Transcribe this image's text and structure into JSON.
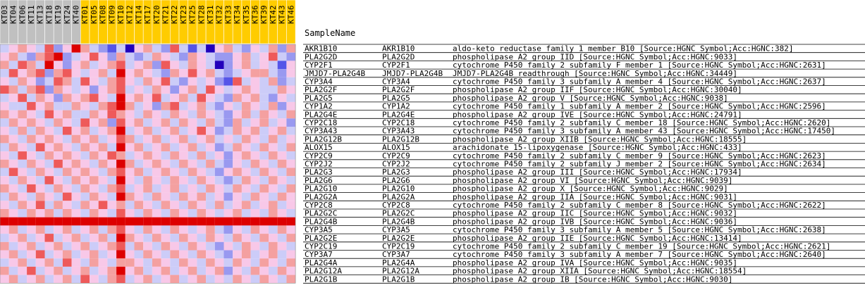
{
  "header": {
    "sample_name": "SampleName"
  },
  "chart_data": {
    "type": "heatmap",
    "samples": [
      "KT03",
      "KT04",
      "KT06",
      "KT11",
      "KT13",
      "KT18",
      "KT19",
      "KT24",
      "KT40",
      "KT01",
      "KT05",
      "KT08",
      "KT09",
      "KT10",
      "KT12",
      "KT14",
      "KT17",
      "KT20",
      "KT21",
      "KT22",
      "KT23",
      "KT25",
      "KT28",
      "KT31",
      "KT32",
      "KT33",
      "KT34",
      "KT35",
      "KT36",
      "KT39",
      "KT42",
      "KT43",
      "KT46"
    ],
    "sample_groups": [
      0,
      0,
      0,
      0,
      0,
      0,
      0,
      0,
      0,
      1,
      1,
      1,
      1,
      1,
      1,
      1,
      1,
      1,
      1,
      1,
      1,
      1,
      1,
      1,
      1,
      1,
      1,
      1,
      1,
      1,
      1,
      1,
      1
    ],
    "group_colors": [
      "#c0c0c0",
      "#ffcc00"
    ],
    "scale_colors": [
      "#2200bb",
      "#5555e8",
      "#9999f0",
      "#ccccf8",
      "#f8c8e8",
      "#f4a0a0",
      "#ee5a5a",
      "#dd0000"
    ],
    "rows": [
      {
        "probe": "AKR1B10",
        "symbol": "AKR1B10",
        "desc": "aldo-keto reductase family 1 member B10 [Source:HGNC Symbol;Acc:HGNC:382]"
      },
      {
        "probe": "PLA2G2D",
        "symbol": "PLA2G2D",
        "desc": "phospholipase A2 group IID [Source:HGNC Symbol;Acc:HGNC:9033]"
      },
      {
        "probe": "CYP2F1",
        "symbol": "CYP2F1",
        "desc": "cytochrome P450 family 2 subfamily F member 1 [Source:HGNC Symbol;Acc:HGNC:2631]"
      },
      {
        "probe": "JMJD7-PLA2G4B",
        "symbol": "JMJD7-PLA2G4B",
        "desc": "JMJD7-PLA2G4B readthrough [Source:HGNC Symbol;Acc:HGNC:34449]"
      },
      {
        "probe": "CYP3A4",
        "symbol": "CYP3A4",
        "desc": "cytochrome P450 family 3 subfamily A member 4 [Source:HGNC Symbol;Acc:HGNC:2637]"
      },
      {
        "probe": "PLA2G2F",
        "symbol": "PLA2G2F",
        "desc": "phospholipase A2 group IIF [Source:HGNC Symbol;Acc:HGNC:30040]"
      },
      {
        "probe": "PLA2G5",
        "symbol": "PLA2G5",
        "desc": "phospholipase A2 group V [Source:HGNC Symbol;Acc:HGNC:9038]"
      },
      {
        "probe": "CYP1A2",
        "symbol": "CYP1A2",
        "desc": "cytochrome P450 family 1 subfamily A member 2 [Source:HGNC Symbol;Acc:HGNC:2596]"
      },
      {
        "probe": "PLA2G4E",
        "symbol": "PLA2G4E",
        "desc": "phospholipase A2 group IVE [Source:HGNC Symbol;Acc:HGNC:24791]"
      },
      {
        "probe": "CYP2C18",
        "symbol": "CYP2C18",
        "desc": "cytochrome P450 family 2 subfamily C member 18 [Source:HGNC Symbol;Acc:HGNC:2620]"
      },
      {
        "probe": "CYP3A43",
        "symbol": "CYP3A43",
        "desc": "cytochrome P450 family 3 subfamily A member 43 [Source:HGNC Symbol;Acc:HGNC:17450]"
      },
      {
        "probe": "PLA2G12B",
        "symbol": "PLA2G12B",
        "desc": "phospholipase A2 group XIIB [Source:HGNC Symbol;Acc:HGNC:18555]"
      },
      {
        "probe": "ALOX15",
        "symbol": "ALOX15",
        "desc": "arachidonate 15-lipoxygenase [Source:HGNC Symbol;Acc:HGNC:433]"
      },
      {
        "probe": "CYP2C9",
        "symbol": "CYP2C9",
        "desc": "cytochrome P450 family 2 subfamily C member 9 [Source:HGNC Symbol;Acc:HGNC:2623]"
      },
      {
        "probe": "CYP2J2",
        "symbol": "CYP2J2",
        "desc": "cytochrome P450 family 2 subfamily J member 2 [Source:HGNC Symbol;Acc:HGNC:2634]"
      },
      {
        "probe": "PLA2G3",
        "symbol": "PLA2G3",
        "desc": "phospholipase A2 group III [Source:HGNC Symbol;Acc:HGNC:17934]"
      },
      {
        "probe": "PLA2G6",
        "symbol": "PLA2G6",
        "desc": "phospholipase A2 group VI [Source:HGNC Symbol;Acc:HGNC:9039]"
      },
      {
        "probe": "PLA2G10",
        "symbol": "PLA2G10",
        "desc": "phospholipase A2 group X [Source:HGNC Symbol;Acc:HGNC:9029]"
      },
      {
        "probe": "PLA2G2A",
        "symbol": "PLA2G2A",
        "desc": "phospholipase A2 group IIA [Source:HGNC Symbol;Acc:HGNC:9031]"
      },
      {
        "probe": "CYP2C8",
        "symbol": "CYP2C8",
        "desc": "cytochrome P450 family 2 subfamily C member 8 [Source:HGNC Symbol;Acc:HGNC:2622]"
      },
      {
        "probe": "PLA2G2C",
        "symbol": "PLA2G2C",
        "desc": "phospholipase A2 group IIC [Source:HGNC Symbol;Acc:HGNC:9032]"
      },
      {
        "probe": "PLA2G4B",
        "symbol": "PLA2G4B",
        "desc": "phospholipase A2 group IVB [Source:HGNC Symbol;Acc:HGNC:9036]"
      },
      {
        "probe": "CYP3A5",
        "symbol": "CYP3A5",
        "desc": "cytochrome P450 family 3 subfamily A member 5 [Source:HGNC Symbol;Acc:HGNC:2638]"
      },
      {
        "probe": "PLA2G2E",
        "symbol": "PLA2G2E",
        "desc": "phospholipase A2 group IIE [Source:HGNC Symbol;Acc:HGNC:13414]"
      },
      {
        "probe": "CYP2C19",
        "symbol": "CYP2C19",
        "desc": "cytochrome P450 family 2 subfamily C member 19 [Source:HGNC Symbol;Acc:HGNC:2621]"
      },
      {
        "probe": "CYP3A7",
        "symbol": "CYP3A7",
        "desc": "cytochrome P450 family 3 subfamily A member 7 [Source:HGNC Symbol;Acc:HGNC:2640]"
      },
      {
        "probe": "PLA2G4A",
        "symbol": "PLA2G4A",
        "desc": "phospholipase A2 group IVA [Source:HGNC Symbol;Acc:HGNC:9035]"
      },
      {
        "probe": "PLA2G12A",
        "symbol": "PLA2G12A",
        "desc": "phospholipase A2 group XIIA [Source:HGNC Symbol;Acc:HGNC:18554]"
      },
      {
        "probe": "PLA2G1B",
        "symbol": "PLA2G1B",
        "desc": "phospholipase A2 group IB [Source:HGNC Symbol;Acc:HGNC:9030]"
      }
    ],
    "values": [
      [
        3,
        4,
        5,
        4,
        3,
        6,
        2,
        4,
        7,
        5,
        3,
        2,
        1,
        3,
        0,
        4,
        5,
        3,
        2,
        6,
        3,
        1,
        3,
        0,
        4,
        5,
        3,
        2,
        4,
        3,
        5,
        2,
        5
      ],
      [
        4,
        5,
        3,
        2,
        5,
        6,
        7,
        2,
        3,
        4,
        6,
        4,
        2,
        5,
        3,
        2,
        3,
        5,
        4,
        3,
        2,
        5,
        4,
        3,
        2,
        2,
        4,
        5,
        3,
        4,
        6,
        3,
        2
      ],
      [
        5,
        3,
        6,
        5,
        3,
        7,
        4,
        2,
        4,
        5,
        3,
        4,
        5,
        6,
        3,
        4,
        5,
        2,
        6,
        4,
        3,
        5,
        4,
        3,
        0,
        2,
        4,
        5,
        3,
        4,
        3,
        1,
        4
      ],
      [
        3,
        6,
        4,
        5,
        6,
        2,
        5,
        6,
        4,
        3,
        4,
        5,
        3,
        7,
        4,
        5,
        4,
        3,
        2,
        5,
        4,
        6,
        4,
        5,
        3,
        2,
        3,
        4,
        5,
        5,
        3,
        2,
        4
      ],
      [
        4,
        3,
        5,
        4,
        2,
        3,
        6,
        5,
        3,
        6,
        4,
        3,
        5,
        6,
        4,
        3,
        5,
        4,
        6,
        3,
        2,
        4,
        3,
        4,
        2,
        1,
        6,
        3,
        4,
        3,
        5,
        2,
        3
      ],
      [
        6,
        5,
        3,
        5,
        6,
        2,
        5,
        4,
        3,
        4,
        2,
        4,
        5,
        6,
        3,
        4,
        3,
        5,
        4,
        2,
        4,
        5,
        3,
        6,
        4,
        3,
        4,
        5,
        4,
        3,
        3,
        5,
        4
      ],
      [
        3,
        4,
        6,
        3,
        5,
        4,
        2,
        5,
        4,
        5,
        6,
        4,
        3,
        7,
        4,
        5,
        4,
        6,
        3,
        4,
        5,
        3,
        6,
        4,
        3,
        2,
        5,
        4,
        5,
        3,
        2,
        4,
        3
      ],
      [
        4,
        3,
        3,
        6,
        4,
        5,
        3,
        3,
        5,
        4,
        3,
        5,
        6,
        7,
        5,
        3,
        4,
        2,
        5,
        6,
        3,
        4,
        5,
        3,
        2,
        4,
        3,
        5,
        4,
        3,
        5,
        2,
        4
      ],
      [
        5,
        4,
        5,
        4,
        3,
        6,
        4,
        5,
        3,
        3,
        5,
        4,
        6,
        5,
        4,
        3,
        5,
        4,
        3,
        5,
        4,
        3,
        5,
        4,
        3,
        2,
        4,
        5,
        3,
        5,
        4,
        3,
        5
      ],
      [
        3,
        5,
        4,
        5,
        4,
        3,
        5,
        4,
        3,
        6,
        4,
        5,
        2,
        6,
        4,
        5,
        3,
        4,
        5,
        3,
        5,
        4,
        3,
        5,
        3,
        2,
        5,
        3,
        4,
        5,
        3,
        4,
        2
      ],
      [
        4,
        3,
        5,
        3,
        5,
        4,
        3,
        6,
        4,
        5,
        3,
        4,
        5,
        7,
        3,
        4,
        5,
        3,
        4,
        5,
        3,
        4,
        6,
        4,
        2,
        3,
        5,
        4,
        5,
        3,
        4,
        5,
        3
      ],
      [
        5,
        4,
        3,
        5,
        4,
        5,
        4,
        3,
        5,
        4,
        5,
        3,
        4,
        6,
        5,
        3,
        4,
        5,
        3,
        4,
        5,
        3,
        4,
        5,
        3,
        4,
        3,
        5,
        4,
        3,
        5,
        3,
        4
      ],
      [
        3,
        5,
        4,
        3,
        6,
        4,
        5,
        4,
        3,
        5,
        4,
        5,
        3,
        7,
        4,
        5,
        3,
        4,
        5,
        3,
        4,
        5,
        3,
        4,
        2,
        3,
        5,
        4,
        3,
        5,
        4,
        3,
        5
      ],
      [
        4,
        3,
        6,
        4,
        3,
        5,
        4,
        5,
        4,
        3,
        5,
        4,
        6,
        5,
        3,
        4,
        5,
        4,
        3,
        5,
        4,
        3,
        5,
        3,
        4,
        2,
        4,
        5,
        4,
        3,
        5,
        4,
        3
      ],
      [
        5,
        4,
        3,
        5,
        4,
        3,
        6,
        4,
        5,
        4,
        3,
        5,
        4,
        7,
        5,
        3,
        4,
        5,
        4,
        3,
        5,
        4,
        3,
        5,
        3,
        2,
        4,
        3,
        5,
        4,
        3,
        5,
        4
      ],
      [
        3,
        6,
        4,
        3,
        5,
        4,
        3,
        5,
        4,
        5,
        4,
        3,
        5,
        6,
        4,
        5,
        3,
        4,
        5,
        4,
        3,
        5,
        4,
        3,
        2,
        4,
        5,
        4,
        3,
        5,
        4,
        3,
        5
      ],
      [
        4,
        3,
        5,
        4,
        3,
        6,
        4,
        3,
        5,
        4,
        5,
        4,
        3,
        7,
        4,
        3,
        5,
        4,
        3,
        5,
        4,
        3,
        5,
        4,
        3,
        2,
        3,
        5,
        4,
        3,
        5,
        4,
        3
      ],
      [
        5,
        4,
        3,
        6,
        4,
        3,
        5,
        4,
        3,
        5,
        4,
        3,
        5,
        6,
        3,
        4,
        5,
        3,
        4,
        5,
        3,
        4,
        3,
        5,
        4,
        3,
        5,
        4,
        3,
        5,
        4,
        3,
        5
      ],
      [
        3,
        5,
        4,
        3,
        5,
        4,
        3,
        6,
        4,
        3,
        5,
        4,
        3,
        7,
        5,
        4,
        3,
        5,
        4,
        3,
        5,
        4,
        5,
        3,
        4,
        2,
        4,
        3,
        5,
        4,
        3,
        5,
        4
      ],
      [
        4,
        3,
        5,
        4,
        6,
        3,
        5,
        4,
        3,
        5,
        4,
        6,
        4,
        5,
        3,
        5,
        4,
        3,
        5,
        4,
        3,
        5,
        4,
        3,
        5,
        3,
        4,
        5,
        3,
        4,
        5,
        3,
        4
      ],
      [
        5,
        4,
        3,
        5,
        4,
        5,
        3,
        5,
        4,
        3,
        5,
        4,
        3,
        6,
        4,
        3,
        5,
        4,
        3,
        5,
        4,
        3,
        5,
        4,
        3,
        4,
        5,
        3,
        4,
        3,
        5,
        4,
        3
      ],
      [
        7,
        7,
        7,
        7,
        7,
        7,
        7,
        7,
        7,
        7,
        7,
        7,
        7,
        7,
        7,
        7,
        7,
        7,
        7,
        7,
        7,
        7,
        7,
        7,
        7,
        7,
        7,
        7,
        7,
        7,
        7,
        7,
        7
      ],
      [
        4,
        5,
        3,
        4,
        5,
        3,
        4,
        5,
        3,
        4,
        5,
        3,
        5,
        6,
        4,
        3,
        5,
        4,
        3,
        5,
        4,
        3,
        4,
        5,
        3,
        2,
        4,
        3,
        5,
        4,
        3,
        5,
        4
      ],
      [
        3,
        4,
        5,
        3,
        4,
        6,
        3,
        4,
        5,
        3,
        4,
        5,
        3,
        7,
        5,
        4,
        3,
        5,
        4,
        3,
        5,
        4,
        3,
        5,
        4,
        3,
        5,
        4,
        3,
        5,
        4,
        3,
        5
      ],
      [
        5,
        3,
        4,
        5,
        3,
        4,
        5,
        3,
        4,
        5,
        3,
        4,
        5,
        6,
        3,
        5,
        4,
        3,
        5,
        4,
        3,
        5,
        4,
        3,
        2,
        4,
        3,
        5,
        4,
        3,
        5,
        4,
        3
      ],
      [
        4,
        5,
        3,
        4,
        6,
        3,
        4,
        5,
        3,
        4,
        5,
        3,
        4,
        7,
        4,
        3,
        5,
        4,
        3,
        5,
        4,
        3,
        5,
        4,
        3,
        2,
        4,
        5,
        3,
        4,
        5,
        3,
        4
      ],
      [
        3,
        4,
        5,
        3,
        4,
        5,
        3,
        6,
        4,
        3,
        5,
        4,
        3,
        5,
        5,
        4,
        3,
        5,
        4,
        3,
        5,
        4,
        3,
        5,
        4,
        3,
        5,
        4,
        3,
        5,
        4,
        3,
        5
      ],
      [
        5,
        3,
        4,
        6,
        3,
        4,
        5,
        3,
        4,
        5,
        3,
        4,
        5,
        7,
        4,
        5,
        3,
        4,
        5,
        3,
        4,
        5,
        3,
        4,
        5,
        2,
        4,
        3,
        5,
        4,
        3,
        5,
        4
      ],
      [
        4,
        5,
        3,
        4,
        5,
        3,
        4,
        5,
        3,
        6,
        4,
        3,
        5,
        6,
        3,
        4,
        5,
        3,
        4,
        5,
        3,
        4,
        5,
        3,
        4,
        3,
        5,
        4,
        3,
        5,
        4,
        3,
        5
      ]
    ]
  }
}
